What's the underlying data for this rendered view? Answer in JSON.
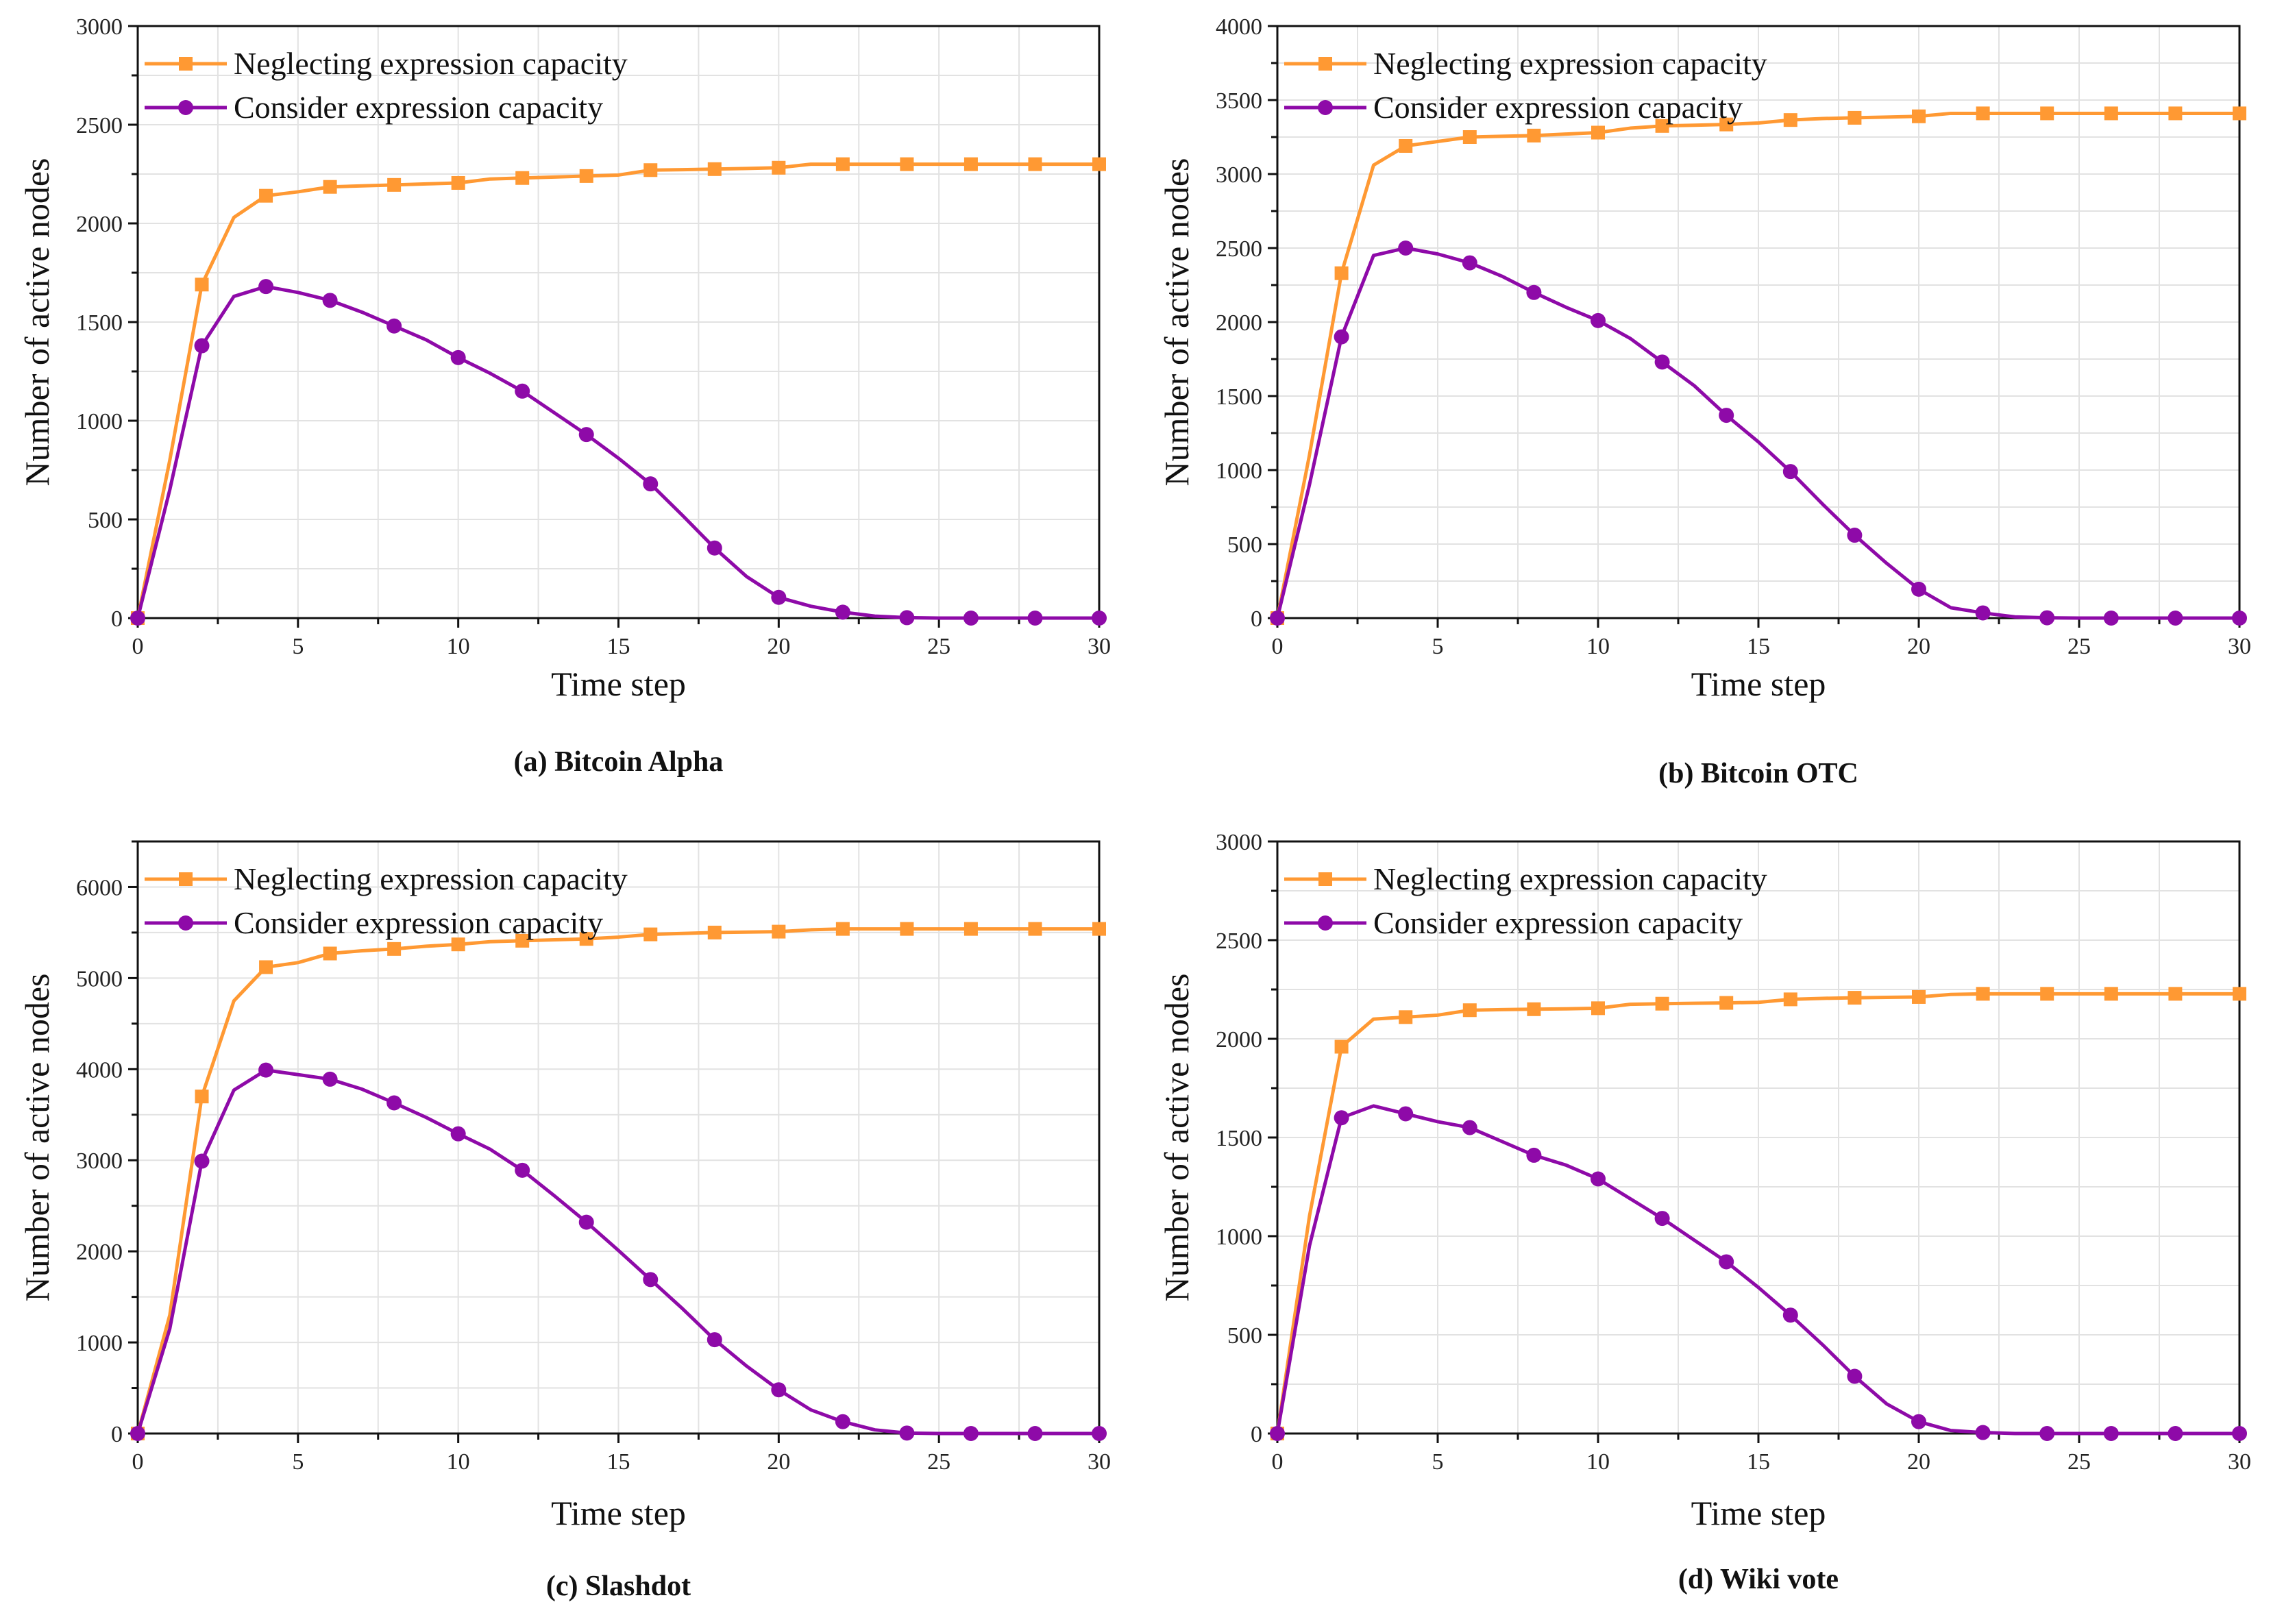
{
  "colors": {
    "neglect": "#FF9933",
    "consider": "#8E0AA8",
    "grid": "#E2E2E2",
    "axis": "#111111"
  },
  "chart_data": [
    {
      "type": "line",
      "caption": "(a) Bitcoin Alpha",
      "xlabel": "Time step",
      "ylabel": "Number of active nodes",
      "xlim": [
        0,
        30
      ],
      "ylim": [
        0,
        3000
      ],
      "xticks": [
        0,
        5,
        10,
        15,
        20,
        25,
        30
      ],
      "yticks": [
        0,
        500,
        1000,
        1500,
        2000,
        2500,
        3000
      ],
      "ygrid_step": 250,
      "legend_position": "top-left",
      "grid": true,
      "x": [
        0,
        1,
        2,
        3,
        4,
        5,
        6,
        7,
        8,
        9,
        10,
        11,
        12,
        13,
        14,
        15,
        16,
        17,
        18,
        19,
        20,
        21,
        22,
        23,
        24,
        25,
        26,
        27,
        28,
        29,
        30
      ],
      "series": [
        {
          "name": "Neglecting expression capacity",
          "marker": "square",
          "values": [
            0,
            800,
            1690,
            2030,
            2140,
            2160,
            2185,
            2190,
            2195,
            2200,
            2205,
            2225,
            2230,
            2235,
            2240,
            2245,
            2270,
            2272,
            2275,
            2278,
            2282,
            2300,
            2300,
            2300,
            2300,
            2300,
            2300,
            2300,
            2300,
            2300,
            2300
          ]
        },
        {
          "name": "Consider expression capacity",
          "marker": "circle",
          "values": [
            0,
            650,
            1380,
            1630,
            1680,
            1650,
            1610,
            1550,
            1480,
            1410,
            1320,
            1240,
            1150,
            1040,
            930,
            810,
            680,
            520,
            355,
            210,
            105,
            60,
            30,
            10,
            2,
            0,
            0,
            0,
            0,
            0,
            0
          ]
        }
      ]
    },
    {
      "type": "line",
      "caption": "(b) Bitcoin OTC",
      "xlabel": "Time step",
      "ylabel": "Number of active nodes",
      "xlim": [
        0,
        30
      ],
      "ylim": [
        0,
        4000
      ],
      "xticks": [
        0,
        5,
        10,
        15,
        20,
        25,
        30
      ],
      "yticks": [
        0,
        500,
        1000,
        1500,
        2000,
        2500,
        3000,
        3500,
        4000
      ],
      "ygrid_step": 250,
      "legend_position": "top-left",
      "grid": true,
      "x": [
        0,
        1,
        2,
        3,
        4,
        5,
        6,
        7,
        8,
        9,
        10,
        11,
        12,
        13,
        14,
        15,
        16,
        17,
        18,
        19,
        20,
        21,
        22,
        23,
        24,
        25,
        26,
        27,
        28,
        29,
        30
      ],
      "series": [
        {
          "name": "Neglecting expression capacity",
          "marker": "square",
          "values": [
            0,
            1100,
            2330,
            3060,
            3190,
            3220,
            3250,
            3255,
            3260,
            3270,
            3280,
            3310,
            3325,
            3330,
            3335,
            3345,
            3365,
            3375,
            3380,
            3385,
            3390,
            3410,
            3410,
            3410,
            3410,
            3410,
            3410,
            3410,
            3410,
            3410,
            3410
          ]
        },
        {
          "name": "Consider expression capacity",
          "marker": "circle",
          "values": [
            0,
            900,
            1900,
            2450,
            2500,
            2460,
            2400,
            2310,
            2200,
            2100,
            2010,
            1890,
            1730,
            1570,
            1370,
            1190,
            990,
            770,
            560,
            370,
            195,
            70,
            35,
            8,
            2,
            0,
            0,
            0,
            0,
            0,
            0
          ]
        }
      ]
    },
    {
      "type": "line",
      "caption": "(c) Slashdot",
      "xlabel": "Time step",
      "ylabel": "Number of active nodes",
      "xlim": [
        0,
        30
      ],
      "ylim": [
        0,
        6500
      ],
      "xticks": [
        0,
        5,
        10,
        15,
        20,
        25,
        30
      ],
      "yticks": [
        0,
        1000,
        2000,
        3000,
        4000,
        5000,
        6000
      ],
      "ygrid_step": 500,
      "legend_position": "top-left",
      "grid": true,
      "x": [
        0,
        1,
        2,
        3,
        4,
        5,
        6,
        7,
        8,
        9,
        10,
        11,
        12,
        13,
        14,
        15,
        16,
        17,
        18,
        19,
        20,
        21,
        22,
        23,
        24,
        25,
        26,
        27,
        28,
        29,
        30
      ],
      "series": [
        {
          "name": "Neglecting expression capacity",
          "marker": "square",
          "values": [
            0,
            1300,
            3700,
            4750,
            5120,
            5170,
            5270,
            5300,
            5320,
            5350,
            5370,
            5400,
            5410,
            5420,
            5430,
            5450,
            5480,
            5490,
            5500,
            5505,
            5510,
            5530,
            5540,
            5540,
            5540,
            5540,
            5540,
            5540,
            5540,
            5540,
            5540
          ]
        },
        {
          "name": "Consider expression capacity",
          "marker": "circle",
          "values": [
            0,
            1150,
            2990,
            3770,
            3990,
            3940,
            3890,
            3780,
            3630,
            3470,
            3290,
            3120,
            2890,
            2610,
            2320,
            2010,
            1690,
            1370,
            1030,
            740,
            480,
            260,
            130,
            40,
            5,
            0,
            0,
            0,
            0,
            0,
            0
          ]
        }
      ]
    },
    {
      "type": "line",
      "caption": "(d) Wiki vote",
      "xlabel": "Time step",
      "ylabel": "Number of active nodes",
      "xlim": [
        0,
        30
      ],
      "ylim": [
        0,
        3000
      ],
      "xticks": [
        0,
        5,
        10,
        15,
        20,
        25,
        30
      ],
      "yticks": [
        0,
        500,
        1000,
        1500,
        2000,
        2500,
        3000
      ],
      "ygrid_step": 250,
      "legend_position": "top-left",
      "grid": true,
      "x": [
        0,
        1,
        2,
        3,
        4,
        5,
        6,
        7,
        8,
        9,
        10,
        11,
        12,
        13,
        14,
        15,
        16,
        17,
        18,
        19,
        20,
        21,
        22,
        23,
        24,
        25,
        26,
        27,
        28,
        29,
        30
      ],
      "series": [
        {
          "name": "Neglecting expression capacity",
          "marker": "square",
          "values": [
            0,
            1100,
            1960,
            2100,
            2110,
            2120,
            2145,
            2148,
            2150,
            2152,
            2155,
            2175,
            2178,
            2180,
            2182,
            2185,
            2200,
            2205,
            2208,
            2210,
            2212,
            2225,
            2228,
            2228,
            2228,
            2228,
            2228,
            2228,
            2228,
            2228,
            2228
          ]
        },
        {
          "name": "Consider expression capacity",
          "marker": "circle",
          "values": [
            0,
            950,
            1600,
            1660,
            1620,
            1580,
            1550,
            1480,
            1410,
            1360,
            1290,
            1190,
            1090,
            980,
            870,
            740,
            600,
            450,
            290,
            150,
            60,
            15,
            5,
            0,
            0,
            0,
            0,
            0,
            0,
            0,
            0
          ]
        }
      ]
    }
  ]
}
